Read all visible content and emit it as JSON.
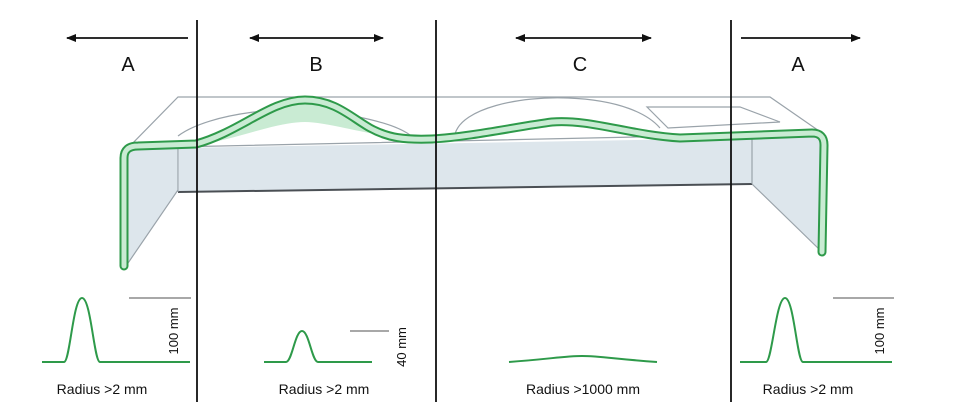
{
  "colors": {
    "profile_stroke": "#2e9a4a",
    "profile_fill": "#c9ebd3",
    "body_fill": "#dde6ec",
    "body_stroke": "#9aa3aa",
    "divider": "#111111",
    "arrow": "#111111",
    "scale_bar": "#8c8c8c"
  },
  "zones": [
    {
      "label": "A",
      "radius": "Radius >2 mm",
      "scale": "100 mm"
    },
    {
      "label": "B",
      "radius": "Radius >2 mm",
      "scale": "40 mm"
    },
    {
      "label": "C",
      "radius": "Radius >1000 mm"
    },
    {
      "label": "A",
      "radius": "Radius >2 mm",
      "scale": "100 mm"
    }
  ]
}
